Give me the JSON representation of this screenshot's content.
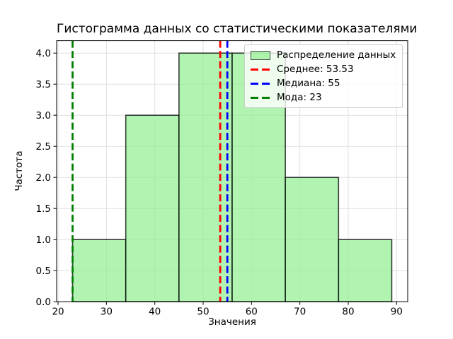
{
  "chart_data": {
    "type": "histogram",
    "title": "Гистограмма данных со статистическими показателями",
    "xlabel": "Значения",
    "ylabel": "Частота",
    "bin_edges": [
      23,
      34,
      45,
      56,
      67,
      78,
      89
    ],
    "counts": [
      1,
      3,
      4,
      4,
      2,
      1
    ],
    "statistics": {
      "mean": 53.53,
      "median": 55,
      "mode": 23
    },
    "stat_lines": [
      {
        "name": "mean",
        "value": 53.53,
        "color": "#ff0000",
        "style": "dashed"
      },
      {
        "name": "median",
        "value": 55,
        "color": "#0000ff",
        "style": "dashed"
      },
      {
        "name": "mode",
        "value": 23,
        "color": "#008000",
        "style": "dashed"
      }
    ],
    "legend": {
      "position": "upper-right",
      "entries": [
        {
          "label": "Распределение данных",
          "swatch": "patch",
          "color": "#90ee90"
        },
        {
          "label": "Среднее: 53.53",
          "swatch": "dashed-line",
          "color": "#ff0000"
        },
        {
          "label": "Медиана: 55",
          "swatch": "dashed-line",
          "color": "#0000ff"
        },
        {
          "label": "Мода: 23",
          "swatch": "dashed-line",
          "color": "#008000"
        }
      ]
    },
    "xticks": [
      20,
      30,
      40,
      50,
      60,
      70,
      80,
      90
    ],
    "xticklabels": [
      "20",
      "30",
      "40",
      "50",
      "60",
      "70",
      "80",
      "90"
    ],
    "yticks": [
      0,
      0.5,
      1,
      1.5,
      2,
      2.5,
      3,
      3.5,
      4
    ],
    "yticklabels": [
      "0.0",
      "0.5",
      "1.0",
      "1.5",
      "2.0",
      "2.5",
      "3.0",
      "3.5",
      "4.0"
    ],
    "xlim": [
      19.7,
      92.3
    ],
    "ylim": [
      0,
      4.2
    ],
    "grid": true,
    "colors": {
      "bar_fill": "#90ee90",
      "bar_fill_alpha": 0.7,
      "bar_edge": "#000000",
      "grid": "#e0e0e0",
      "spine": "#000000",
      "text": "#000000",
      "legend_border": "#cccccc",
      "background": "#ffffff"
    }
  }
}
